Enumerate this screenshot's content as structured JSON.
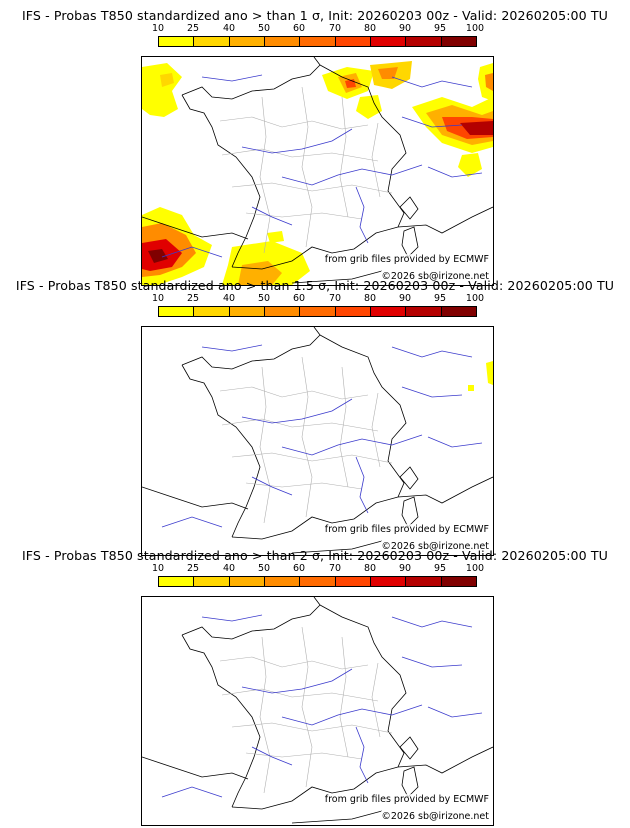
{
  "legend": {
    "labels": [
      "10",
      "25",
      "40",
      "50",
      "60",
      "70",
      "80",
      "90",
      "95",
      "100"
    ],
    "colors": [
      "#ffff00",
      "#ffd700",
      "#ffb000",
      "#ff8c00",
      "#ff6a00",
      "#ff4500",
      "#e00000",
      "#b40000",
      "#800000",
      "#4d0000"
    ]
  },
  "panels": [
    {
      "title": "IFS - Probas T850  standardized ano > than 1 σ, Init: 20260203 00z - Valid: 20260205:00 TU"
    },
    {
      "title": "IFS - Probas T850  standardized ano > than 1.5 σ, Init: 20260203 00z - Valid: 20260205:00 TU"
    },
    {
      "title": "IFS - Probas T850  standardized ano > than 2 σ, Init: 20260203 00z - Valid: 20260205:00 TU"
    }
  ],
  "credit": {
    "source": "from grib files provided by ECMWF",
    "copyright": "©2026 sb@irizone.net"
  }
}
